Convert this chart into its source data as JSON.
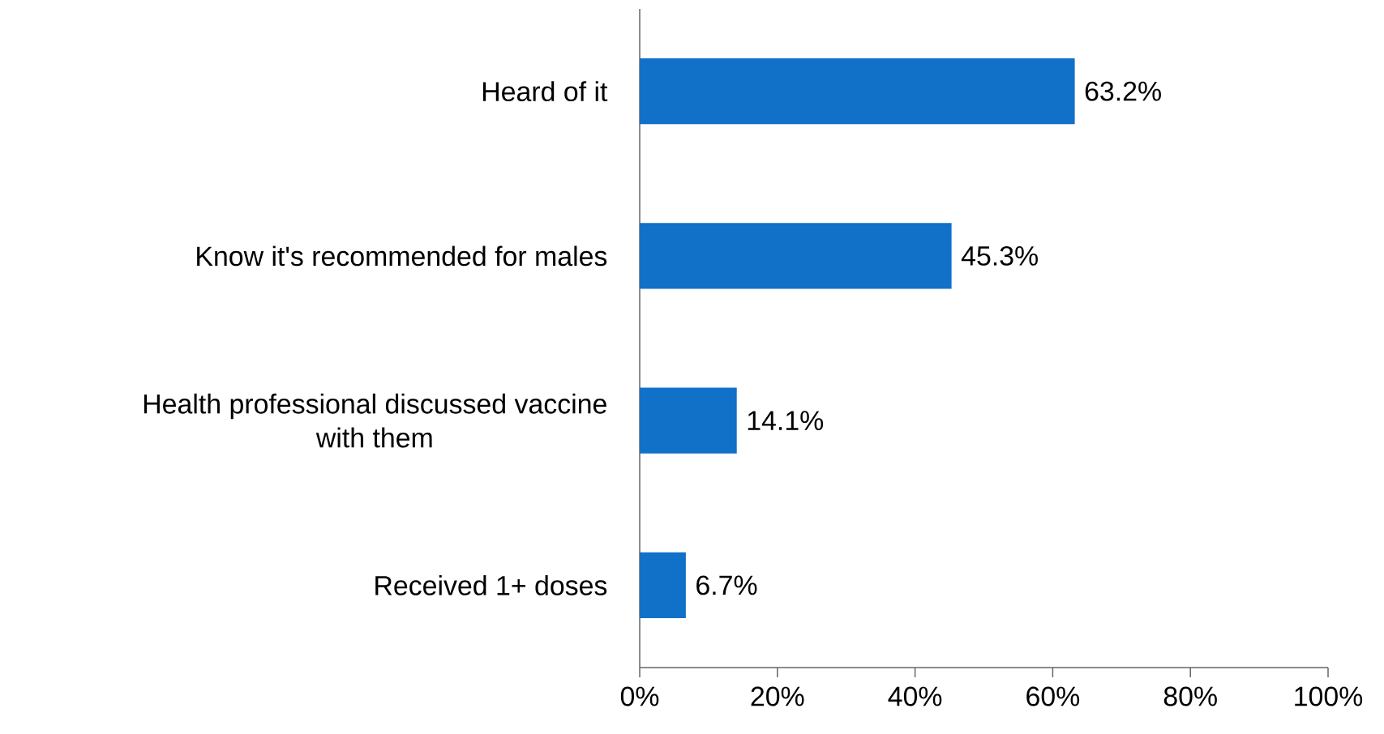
{
  "chart_data": {
    "type": "bar",
    "orientation": "horizontal",
    "categories": [
      "Heard of it",
      "Know it's recommended for males",
      "Health professional discussed vaccine with them",
      "Received 1+ doses"
    ],
    "values": [
      63.2,
      45.3,
      14.1,
      6.7
    ],
    "value_labels": [
      "63.2%",
      "45.3%",
      "14.1%",
      "6.7%"
    ],
    "color": "#1170c8",
    "xlim": [
      0,
      100
    ],
    "xticks": [
      {
        "value": 0,
        "label": "0%"
      },
      {
        "value": 20,
        "label": "20%"
      },
      {
        "value": 40,
        "label": "40%"
      },
      {
        "value": 60,
        "label": "60%"
      },
      {
        "value": 80,
        "label": "80%"
      },
      {
        "value": 100,
        "label": "100%"
      }
    ],
    "grid": false
  }
}
